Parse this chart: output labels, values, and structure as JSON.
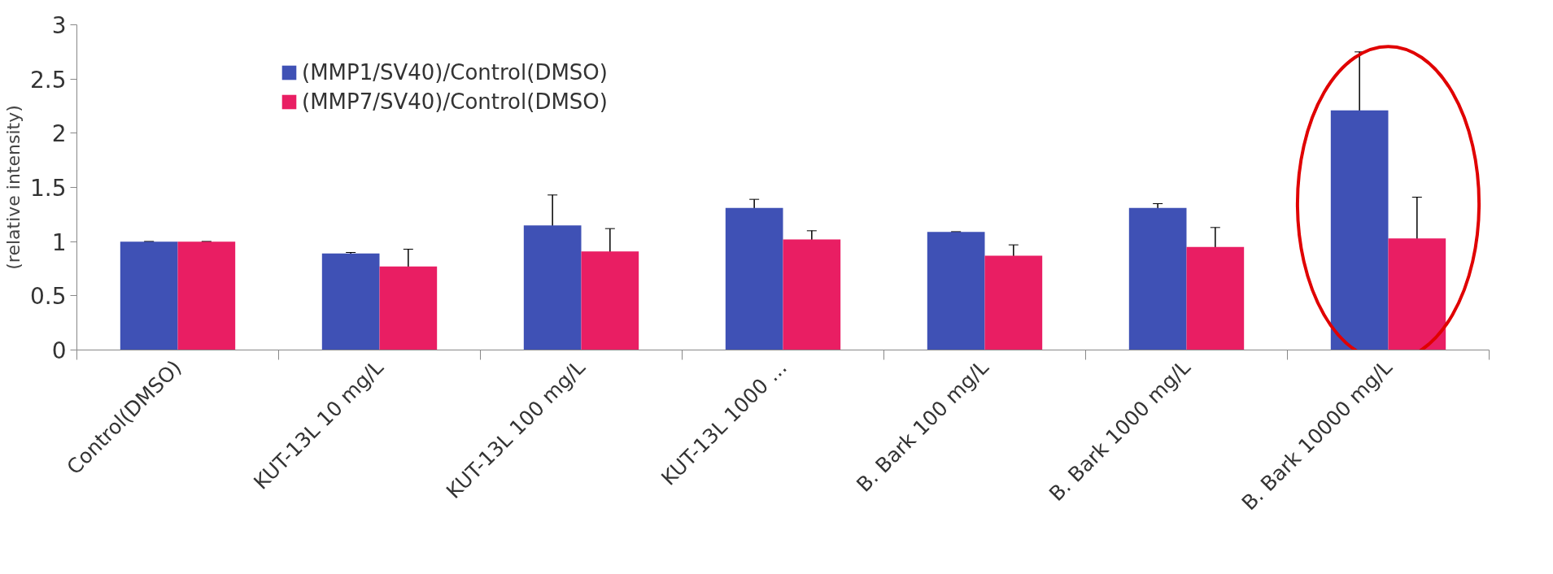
{
  "chart_data": {
    "type": "bar",
    "ylabel": "(relative intensity)",
    "categories": [
      "Control(DMSO)",
      "KUT-13L 10 mg/L",
      "KUT-13L 100 mg/L",
      "KUT-13L 1000 ...",
      "B. Bark 100 mg/L",
      "B. Bark 1000 mg/L",
      "B. Bark 10000 mg/L"
    ],
    "series": [
      {
        "name": "(MMP1/SV40)/Control(DMSO)",
        "color": "#3f51b5",
        "values": [
          1.0,
          0.89,
          1.15,
          1.31,
          1.09,
          1.31,
          2.21
        ],
        "errors": [
          0,
          0.01,
          0.28,
          0.08,
          0,
          0.04,
          0.54
        ]
      },
      {
        "name": "(MMP7/SV40)/Control(DMSO)",
        "color": "#e91e63",
        "values": [
          1.0,
          0.77,
          0.91,
          1.02,
          0.87,
          0.95,
          1.03
        ],
        "errors": [
          0,
          0.16,
          0.21,
          0.08,
          0.1,
          0.18,
          0.38
        ]
      }
    ],
    "ylim": [
      0,
      3
    ],
    "yticks": [
      0,
      0.5,
      1,
      1.5,
      2,
      2.5,
      3
    ],
    "grid": false,
    "legend": "top left"
  }
}
